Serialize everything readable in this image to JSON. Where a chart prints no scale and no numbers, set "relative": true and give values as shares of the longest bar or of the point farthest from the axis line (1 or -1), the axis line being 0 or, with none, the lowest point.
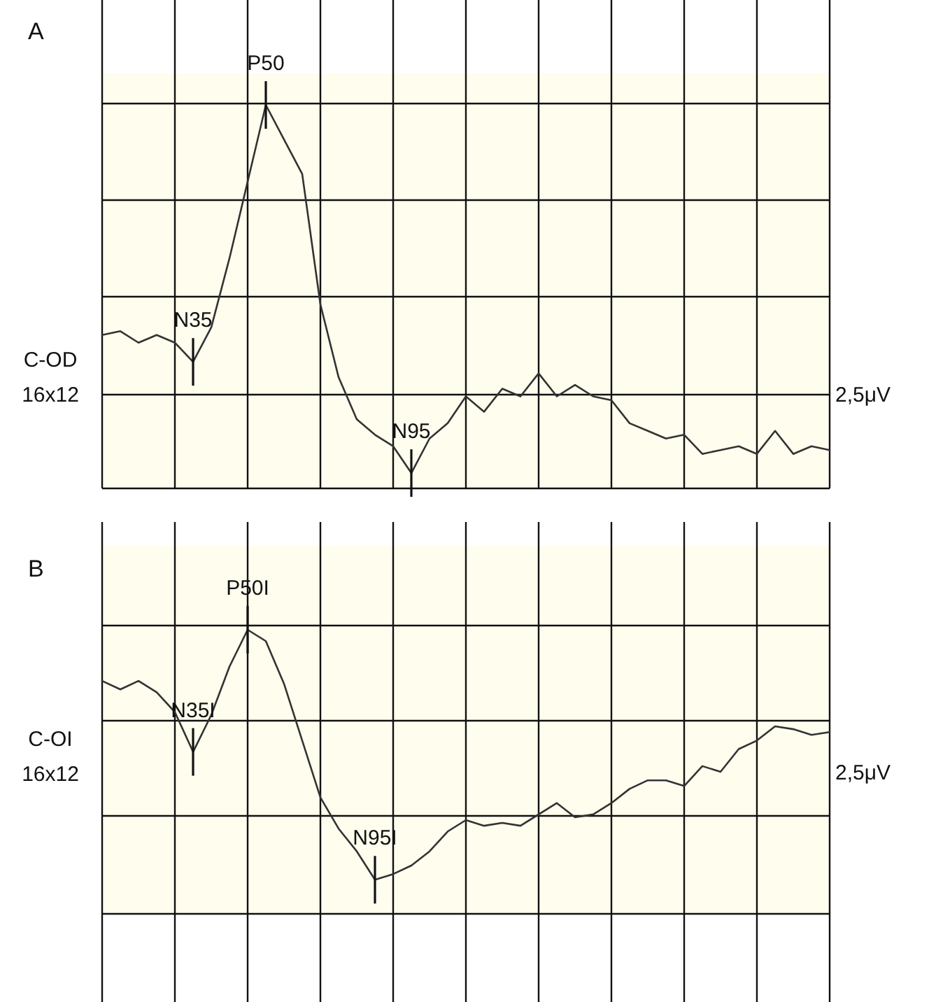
{
  "chart_data": [
    {
      "type": "line",
      "title": "A",
      "ylabel": "C-OD 16x12",
      "y2label": "2,5μV",
      "relative": true,
      "grid": true,
      "categories": [
        null,
        null,
        null,
        null,
        null,
        null,
        null,
        null,
        null,
        null,
        null,
        null,
        null,
        null,
        null,
        null,
        null,
        null,
        null,
        null,
        null,
        null,
        null,
        null,
        null,
        null,
        null,
        null,
        null,
        null,
        null,
        null,
        null,
        null,
        null,
        null,
        null,
        null,
        null,
        null,
        null
      ],
      "series": [
        {
          "color": "#333333",
          "values": [
            0.4,
            0.41,
            0.38,
            0.4,
            0.38,
            0.33,
            0.42,
            0.6,
            0.8,
            1,
            0.91,
            0.82,
            0.48,
            0.29,
            0.18,
            0.14,
            0.11,
            0.04,
            0.13,
            0.17,
            0.24,
            0.2,
            0.26,
            0.24,
            0.3,
            0.24,
            0.27,
            0.24,
            0.23,
            0.17,
            0.15,
            0.13,
            0.14,
            0.09,
            0.1,
            0.11,
            0.09,
            0.15,
            0.09,
            0.11,
            0.1
          ]
        }
      ],
      "annotations": [
        {
          "text": "N35",
          "y": 0.33
        },
        {
          "text": "P50",
          "y": 1
        },
        {
          "text": "N95",
          "y": 0.04
        }
      ]
    },
    {
      "type": "line",
      "title": "B",
      "ylabel": "C-OI 16x12",
      "y2label": "2,5μV",
      "relative": true,
      "grid": true,
      "categories": [
        null,
        null,
        null,
        null,
        null,
        null,
        null,
        null,
        null,
        null,
        null,
        null,
        null,
        null,
        null,
        null,
        null,
        null,
        null,
        null,
        null,
        null,
        null,
        null,
        null,
        null,
        null,
        null,
        null,
        null,
        null,
        null,
        null,
        null,
        null,
        null,
        null,
        null,
        null,
        null,
        null
      ],
      "series": [
        {
          "color": "#333333",
          "values": [
            0.82,
            0.79,
            0.82,
            0.78,
            0.71,
            0.57,
            0.7,
            0.87,
            1,
            0.96,
            0.81,
            0.61,
            0.41,
            0.3,
            0.22,
            0.12,
            0.14,
            0.17,
            0.22,
            0.29,
            0.33,
            0.31,
            0.32,
            0.31,
            0.35,
            0.39,
            0.34,
            0.35,
            0.39,
            0.44,
            0.47,
            0.47,
            0.45,
            0.52,
            0.5,
            0.58,
            0.61,
            0.66,
            0.65,
            0.63,
            0.64
          ]
        }
      ],
      "annotations": [
        {
          "text": "N35I",
          "y": 0.57
        },
        {
          "text": "P50I",
          "y": 1
        },
        {
          "text": "N95I",
          "y": 0.12
        }
      ]
    }
  ]
}
